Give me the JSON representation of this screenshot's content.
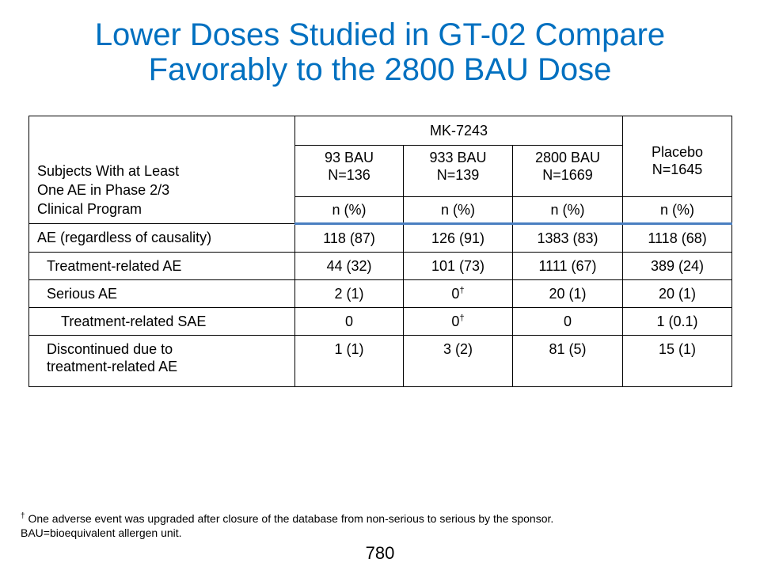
{
  "title": {
    "line1": "Lower Doses Studied in GT-02 Compare",
    "line2": "Favorably to the 2800 BAU Dose"
  },
  "table": {
    "row_header": [
      "Subjects With at Least",
      "One AE in Phase 2/3",
      "Clinical Program"
    ],
    "group_header": "MK-7243",
    "columns": [
      {
        "dose": "93 BAU",
        "n": "N=136",
        "unit": "n (%)"
      },
      {
        "dose": "933 BAU",
        "n": "N=139",
        "unit": "n (%)"
      },
      {
        "dose": "2800 BAU",
        "n": "N=1669",
        "unit": "n (%)"
      },
      {
        "dose": "Placebo",
        "n": "N=1645",
        "unit": "n (%)"
      }
    ],
    "rows": [
      {
        "label": "AE (regardless of causality)",
        "values": [
          "118 (87)",
          "126 (91)",
          "1383 (83)",
          "1118 (68)"
        ],
        "marks": [
          "",
          "",
          "",
          ""
        ]
      },
      {
        "label": "Treatment-related AE",
        "values": [
          "44 (32)",
          "101 (73)",
          "1111 (67)",
          "389 (24)"
        ],
        "marks": [
          "",
          "",
          "",
          ""
        ]
      },
      {
        "label": "Serious AE",
        "values": [
          "2 (1)",
          "0",
          "20 (1)",
          "20 (1)"
        ],
        "marks": [
          "",
          "†",
          "",
          ""
        ]
      },
      {
        "label": "Treatment-related SAE",
        "values": [
          "0",
          "0",
          "0",
          "1 (0.1)"
        ],
        "marks": [
          "",
          "†",
          "",
          ""
        ]
      },
      {
        "label_lines": [
          "Discontinued due to",
          "treatment-related AE"
        ],
        "values": [
          "1 (1)",
          "3 (2)",
          "81 (5)",
          "15 (1)"
        ],
        "marks": [
          "",
          "",
          "",
          ""
        ]
      }
    ]
  },
  "footnote": {
    "dagger": "†",
    "line1": "One adverse event was upgraded after closure of the database from non-serious to serious by the sponsor.",
    "line2": "BAU=bioequivalent allergen unit."
  },
  "page_number": "780",
  "colors": {
    "title": "#0070C0",
    "header_rule": "#4a7fc1"
  }
}
